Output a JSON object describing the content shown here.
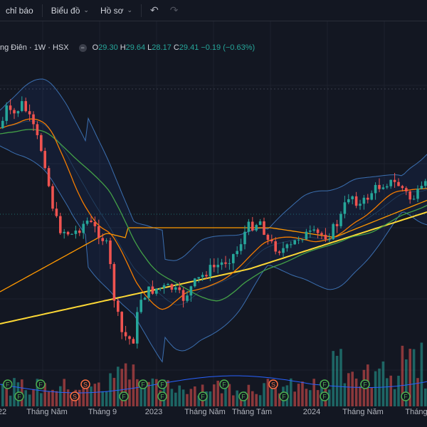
{
  "toolbar": {
    "indicators": "chỉ báo",
    "chart_layout": "Biểu đồ",
    "profile": "Hồ sơ"
  },
  "legend": {
    "symbol": "ng Điên · 1W · HSX",
    "open_label": "O",
    "open": "29.30",
    "high_label": "H",
    "high": "29.64",
    "low_label": "L",
    "low": "28.17",
    "close_label": "C",
    "close": "29.41",
    "change": "−0.19 (−0.63%)"
  },
  "x_axis": {
    "labels": [
      {
        "text": "22",
        "at": 0.005
      },
      {
        "text": "Tháng Năm",
        "at": 0.11
      },
      {
        "text": "Tháng 9",
        "at": 0.24
      },
      {
        "text": "2023",
        "at": 0.36
      },
      {
        "text": "Tháng Năm",
        "at": 0.48
      },
      {
        "text": "Tháng Tám",
        "at": 0.59
      },
      {
        "text": "2024",
        "at": 0.73
      },
      {
        "text": "Tháng Năm",
        "at": 0.85
      },
      {
        "text": "Tháng",
        "at": 0.975
      }
    ]
  },
  "markers": [
    {
      "type": "F",
      "at": 0.018
    },
    {
      "type": "F",
      "at": 0.045
    },
    {
      "type": "F",
      "at": 0.095
    },
    {
      "type": "S",
      "at": 0.175
    },
    {
      "type": "S",
      "at": 0.2
    },
    {
      "type": "F",
      "at": 0.29
    },
    {
      "type": "F",
      "at": 0.335
    },
    {
      "type": "F",
      "at": 0.38
    },
    {
      "type": "F",
      "at": 0.38
    },
    {
      "type": "F",
      "at": 0.475
    },
    {
      "type": "F",
      "at": 0.525
    },
    {
      "type": "F",
      "at": 0.57
    },
    {
      "type": "S",
      "at": 0.64
    },
    {
      "type": "F",
      "at": 0.665
    },
    {
      "type": "F",
      "at": 0.76
    },
    {
      "type": "F",
      "at": 0.76
    },
    {
      "type": "F",
      "at": 0.855
    },
    {
      "type": "F",
      "at": 0.95
    }
  ],
  "colors": {
    "up": "#26a69a",
    "down": "#ef5350",
    "ma_short": "#f57c00",
    "ma_mid": "#43a047",
    "ma_long_orange": "#ff9800",
    "ma_long_yellow": "#fdd835",
    "bb": "#2962ff",
    "vol_ma": "#2962ff"
  }
}
